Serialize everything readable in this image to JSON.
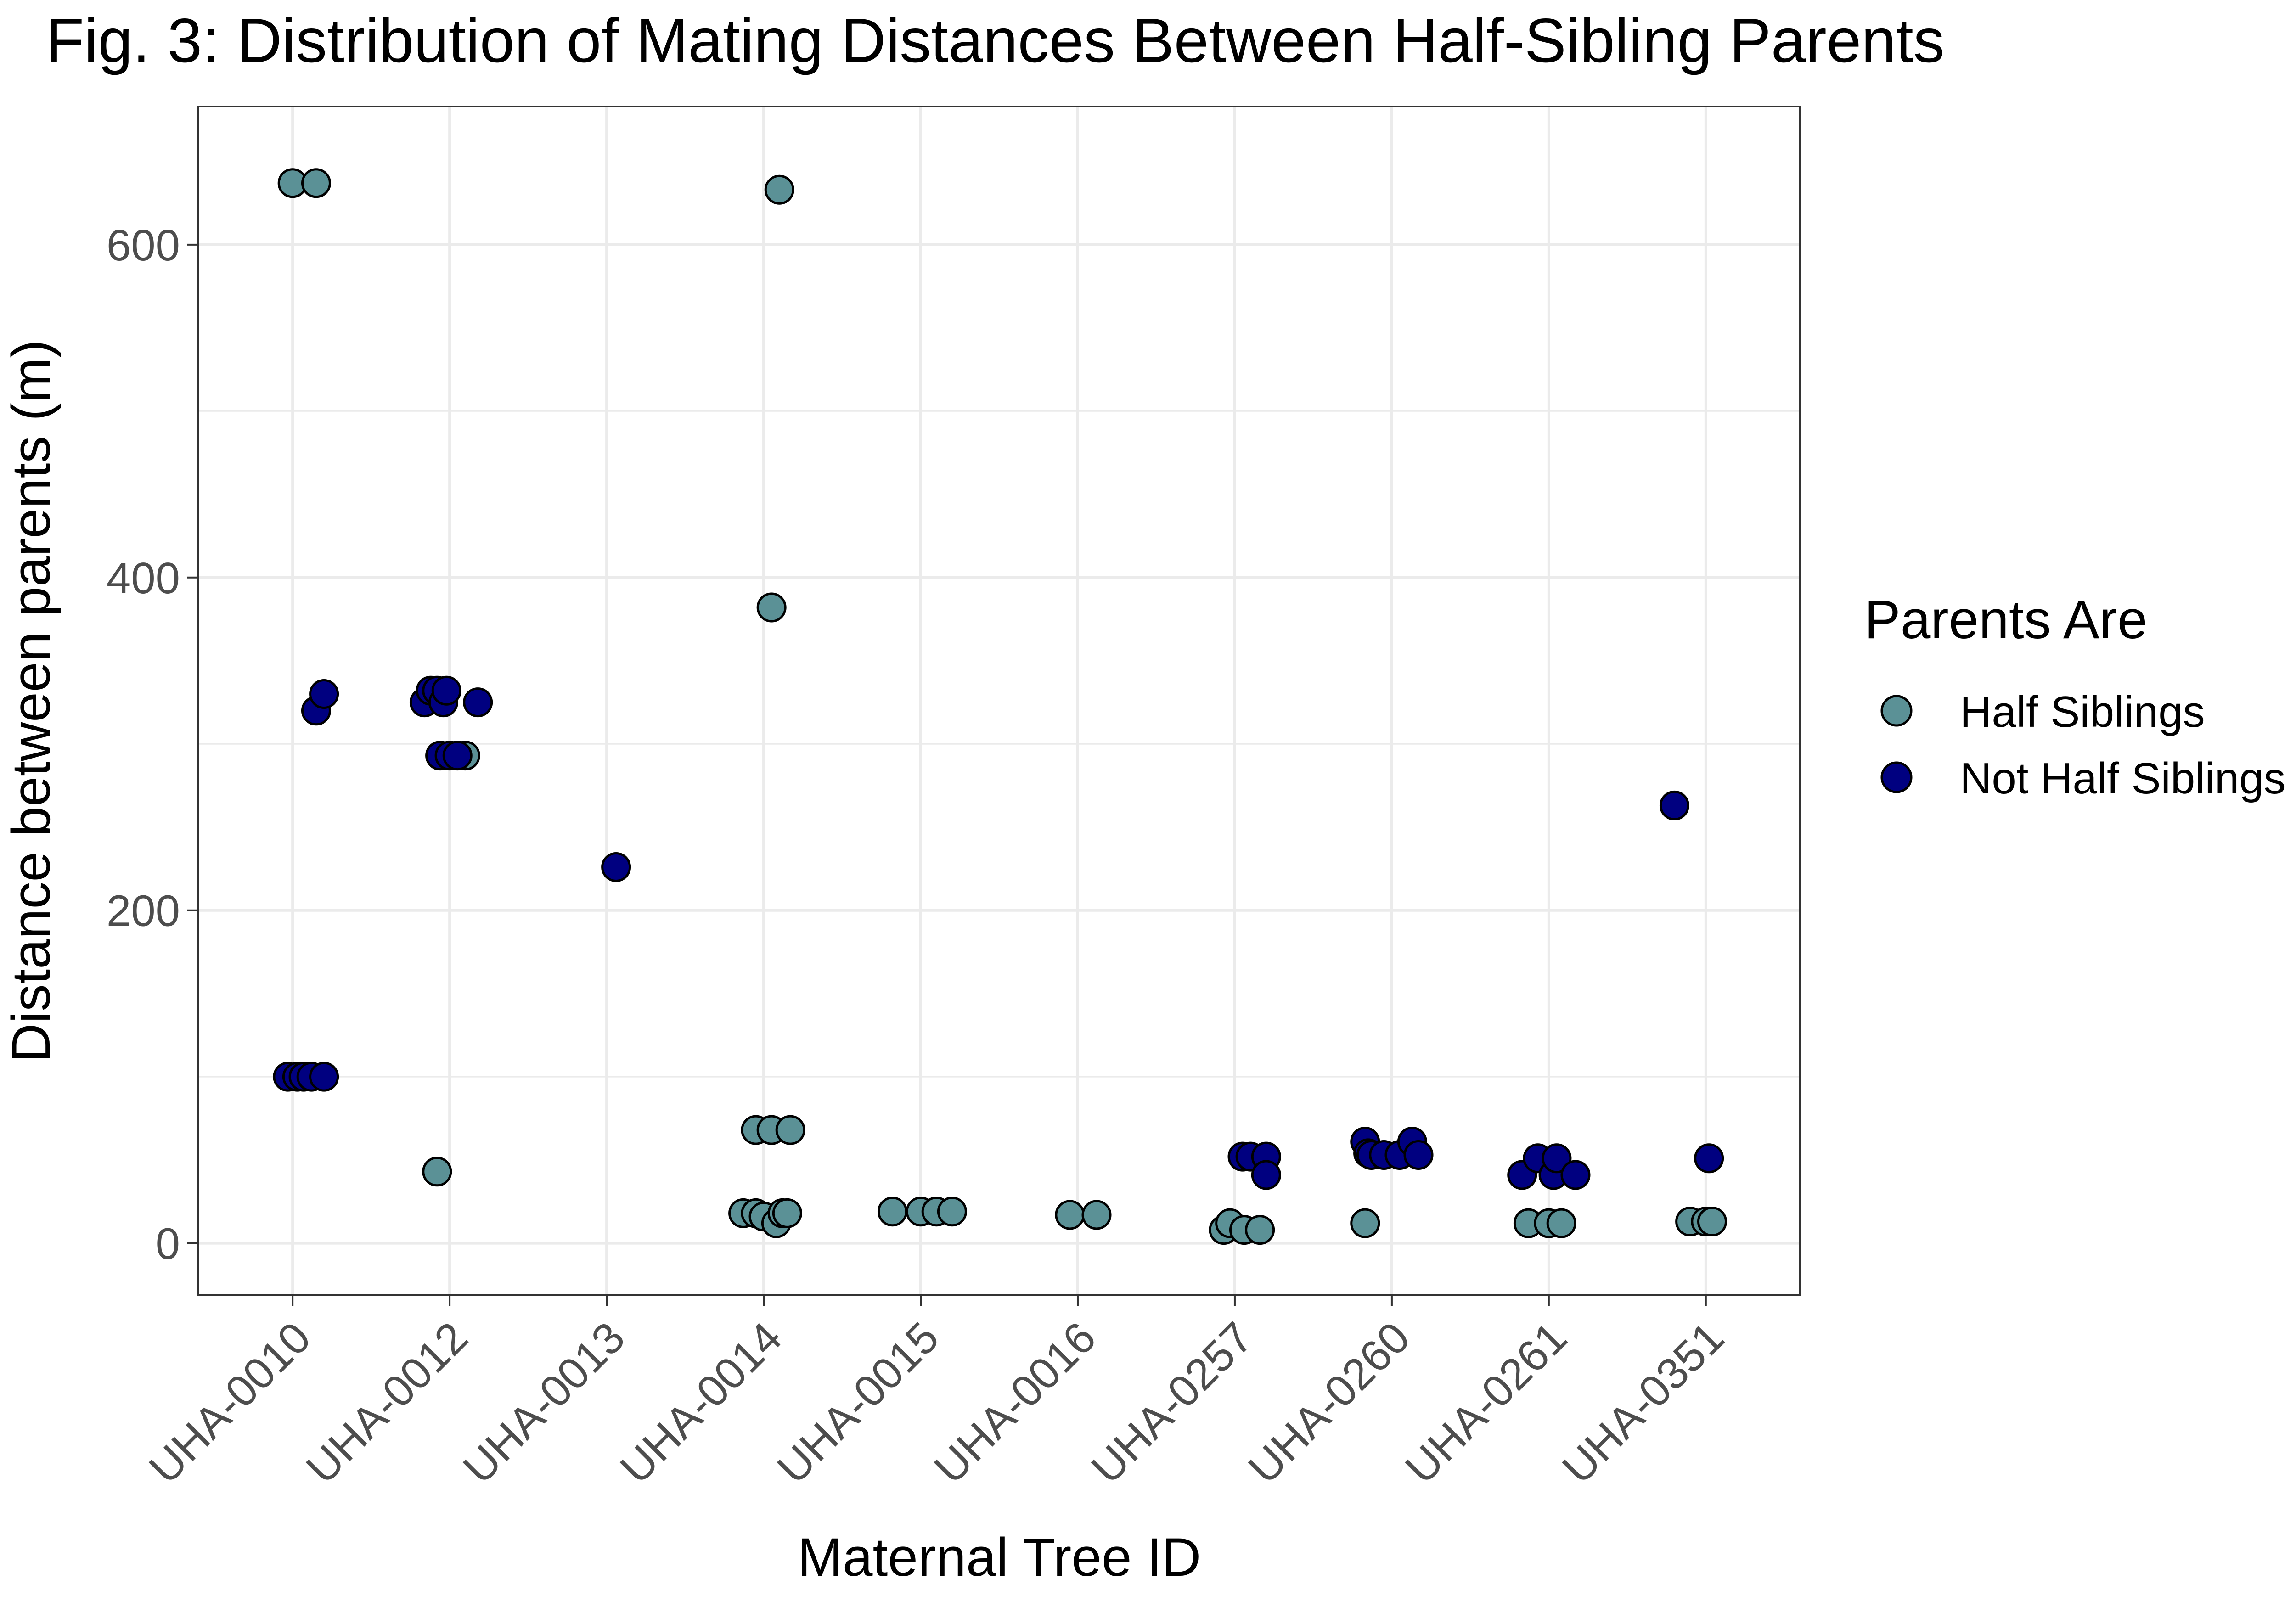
{
  "chart_data": {
    "type": "scatter",
    "title": "Fig. 3: Distribution of Mating Distances Between Half-Sibling Parents",
    "xlabel": "Maternal Tree ID",
    "ylabel": "Distance between parents (m)",
    "categories": [
      "UHA-0010",
      "UHA-0012",
      "UHA-0013",
      "UHA-0014",
      "UHA-0015",
      "UHA-0016",
      "UHA-0257",
      "UHA-0260",
      "UHA-0261",
      "UHA-0351"
    ],
    "yticks": [
      0,
      200,
      400,
      600
    ],
    "ylim": [
      -31,
      683
    ],
    "grid": true,
    "jitter": true,
    "legend": {
      "title": "Parents Are",
      "position": "right",
      "entries": [
        "Half Siblings",
        "Not Half Siblings"
      ]
    },
    "colors": {
      "Half Siblings": "#5b9196",
      "Not Half Siblings": "#000080"
    },
    "series": [
      {
        "name": "Half Siblings",
        "points": [
          {
            "x": "UHA-0010",
            "dx": -0.0,
            "y": 637
          },
          {
            "x": "UHA-0010",
            "dx": 0.15,
            "y": 637
          },
          {
            "x": "UHA-0012",
            "dx": -0.08,
            "y": 43
          },
          {
            "x": "UHA-0012",
            "dx": 0.1,
            "y": 293
          },
          {
            "x": "UHA-0014",
            "dx": -0.13,
            "y": 18
          },
          {
            "x": "UHA-0014",
            "dx": -0.05,
            "y": 18
          },
          {
            "x": "UHA-0014",
            "dx": 0.0,
            "y": 16
          },
          {
            "x": "UHA-0014",
            "dx": 0.08,
            "y": 12
          },
          {
            "x": "UHA-0014",
            "dx": 0.12,
            "y": 18
          },
          {
            "x": "UHA-0014",
            "dx": 0.15,
            "y": 18
          },
          {
            "x": "UHA-0014",
            "dx": -0.05,
            "y": 68
          },
          {
            "x": "UHA-0014",
            "dx": 0.05,
            "y": 68
          },
          {
            "x": "UHA-0014",
            "dx": 0.17,
            "y": 68
          },
          {
            "x": "UHA-0014",
            "dx": 0.05,
            "y": 382
          },
          {
            "x": "UHA-0014",
            "dx": 0.1,
            "y": 633
          },
          {
            "x": "UHA-0015",
            "dx": -0.18,
            "y": 19
          },
          {
            "x": "UHA-0015",
            "dx": -0.0,
            "y": 19
          },
          {
            "x": "UHA-0015",
            "dx": 0.1,
            "y": 19
          },
          {
            "x": "UHA-0015",
            "dx": 0.2,
            "y": 19
          },
          {
            "x": "UHA-0016",
            "dx": -0.05,
            "y": 17
          },
          {
            "x": "UHA-0016",
            "dx": 0.12,
            "y": 17
          },
          {
            "x": "UHA-0257",
            "dx": -0.07,
            "y": 8
          },
          {
            "x": "UHA-0257",
            "dx": -0.03,
            "y": 12
          },
          {
            "x": "UHA-0257",
            "dx": 0.06,
            "y": 8
          },
          {
            "x": "UHA-0257",
            "dx": 0.16,
            "y": 8
          },
          {
            "x": "UHA-0260",
            "dx": -0.17,
            "y": 12
          },
          {
            "x": "UHA-0261",
            "dx": -0.13,
            "y": 12
          },
          {
            "x": "UHA-0261",
            "dx": 0.0,
            "y": 12
          },
          {
            "x": "UHA-0261",
            "dx": 0.08,
            "y": 12
          },
          {
            "x": "UHA-0351",
            "dx": -0.1,
            "y": 13
          },
          {
            "x": "UHA-0351",
            "dx": 0.0,
            "y": 13
          },
          {
            "x": "UHA-0351",
            "dx": 0.04,
            "y": 13
          }
        ]
      },
      {
        "name": "Not Half Siblings",
        "points": [
          {
            "x": "UHA-0010",
            "dx": -0.03,
            "y": 100
          },
          {
            "x": "UHA-0010",
            "dx": 0.03,
            "y": 100
          },
          {
            "x": "UHA-0010",
            "dx": 0.07,
            "y": 100
          },
          {
            "x": "UHA-0010",
            "dx": 0.12,
            "y": 100
          },
          {
            "x": "UHA-0010",
            "dx": 0.2,
            "y": 100
          },
          {
            "x": "UHA-0010",
            "dx": 0.15,
            "y": 320
          },
          {
            "x": "UHA-0010",
            "dx": 0.2,
            "y": 330
          },
          {
            "x": "UHA-0012",
            "dx": -0.16,
            "y": 325
          },
          {
            "x": "UHA-0012",
            "dx": -0.12,
            "y": 332
          },
          {
            "x": "UHA-0012",
            "dx": -0.08,
            "y": 332
          },
          {
            "x": "UHA-0012",
            "dx": -0.04,
            "y": 325
          },
          {
            "x": "UHA-0012",
            "dx": -0.02,
            "y": 332
          },
          {
            "x": "UHA-0012",
            "dx": 0.18,
            "y": 325
          },
          {
            "x": "UHA-0012",
            "dx": -0.06,
            "y": 293
          },
          {
            "x": "UHA-0012",
            "dx": 0.0,
            "y": 293
          },
          {
            "x": "UHA-0012",
            "dx": 0.05,
            "y": 293
          },
          {
            "x": "UHA-0013",
            "dx": 0.06,
            "y": 226
          },
          {
            "x": "UHA-0257",
            "dx": 0.05,
            "y": 52
          },
          {
            "x": "UHA-0257",
            "dx": 0.1,
            "y": 52
          },
          {
            "x": "UHA-0257",
            "dx": 0.2,
            "y": 52
          },
          {
            "x": "UHA-0257",
            "dx": 0.2,
            "y": 41
          },
          {
            "x": "UHA-0260",
            "dx": -0.17,
            "y": 61
          },
          {
            "x": "UHA-0260",
            "dx": -0.15,
            "y": 54
          },
          {
            "x": "UHA-0260",
            "dx": -0.13,
            "y": 53
          },
          {
            "x": "UHA-0260",
            "dx": -0.05,
            "y": 53
          },
          {
            "x": "UHA-0260",
            "dx": 0.05,
            "y": 53
          },
          {
            "x": "UHA-0260",
            "dx": 0.13,
            "y": 61
          },
          {
            "x": "UHA-0260",
            "dx": 0.17,
            "y": 53
          },
          {
            "x": "UHA-0261",
            "dx": -0.17,
            "y": 41
          },
          {
            "x": "UHA-0261",
            "dx": -0.07,
            "y": 51
          },
          {
            "x": "UHA-0261",
            "dx": 0.03,
            "y": 41
          },
          {
            "x": "UHA-0261",
            "dx": 0.05,
            "y": 51
          },
          {
            "x": "UHA-0261",
            "dx": 0.17,
            "y": 41
          },
          {
            "x": "UHA-0351",
            "dx": -0.2,
            "y": 263
          },
          {
            "x": "UHA-0351",
            "dx": 0.02,
            "y": 51
          }
        ]
      }
    ]
  }
}
